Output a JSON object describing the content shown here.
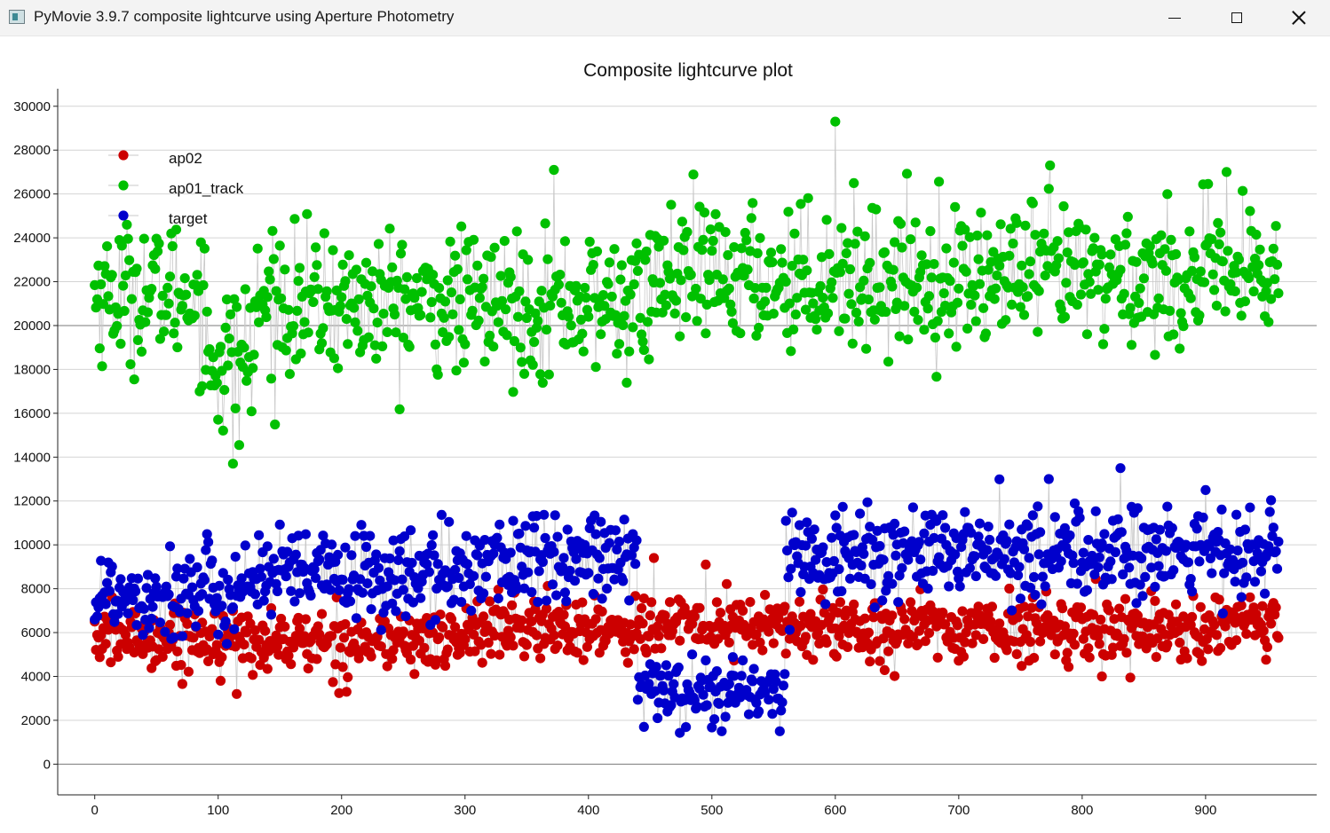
{
  "window": {
    "title": "PyMovie 3.9.7 composite lightcurve using Aperture Photometry",
    "minimize_icon": "minimize-icon",
    "maximize_icon": "maximize-icon",
    "close_icon": "close-icon"
  },
  "chart_data": {
    "type": "scatter",
    "title": "Composite lightcurve plot",
    "xlabel": "",
    "ylabel": "",
    "xlim": [
      -30,
      990
    ],
    "ylim": [
      -1400,
      30800
    ],
    "x_ticks": [
      0,
      100,
      200,
      300,
      400,
      500,
      600,
      700,
      800,
      900
    ],
    "y_ticks": [
      0,
      2000,
      4000,
      6000,
      8000,
      10000,
      12000,
      14000,
      16000,
      18000,
      20000,
      22000,
      24000,
      26000,
      28000,
      30000
    ],
    "x_tick_labels": [
      "0",
      "100",
      "200",
      "300",
      "400",
      "500",
      "600",
      "700",
      "800",
      "900"
    ],
    "y_tick_labels": [
      "0",
      "2000",
      "4000",
      "6000",
      "8000",
      "10000",
      "12000",
      "14000",
      "16000",
      "18000",
      "20000",
      "22000",
      "24000",
      "26000",
      "28000",
      "30000"
    ],
    "grid": true,
    "reference_lines": [
      0,
      20000
    ],
    "legend_position": "top-left",
    "n_points": 960,
    "series": [
      {
        "name": "ap02",
        "color": "#cc0000",
        "mean_by_segment": [
          {
            "x_start": 0,
            "x_end": 100,
            "mean": 5800
          },
          {
            "x_start": 100,
            "x_end": 300,
            "mean": 5600
          },
          {
            "x_start": 300,
            "x_end": 450,
            "mean": 6200
          },
          {
            "x_start": 450,
            "x_end": 560,
            "mean": 6300
          },
          {
            "x_start": 560,
            "x_end": 960,
            "mean": 6200
          }
        ],
        "highlights": [
          {
            "x": 115,
            "y": 3200
          },
          {
            "x": 453,
            "y": 9400
          },
          {
            "x": 495,
            "y": 9100
          },
          {
            "x": 816,
            "y": 4000
          }
        ]
      },
      {
        "name": "ap01_track",
        "color": "#00c000",
        "mean_by_segment": [
          {
            "x_start": 0,
            "x_end": 90,
            "mean": 21500
          },
          {
            "x_start": 90,
            "x_end": 130,
            "mean": 18500
          },
          {
            "x_start": 130,
            "x_end": 450,
            "mean": 21000
          },
          {
            "x_start": 450,
            "x_end": 960,
            "mean": 22200
          }
        ],
        "highlights": [
          {
            "x": 600,
            "y": 29300
          },
          {
            "x": 112,
            "y": 13700
          },
          {
            "x": 774,
            "y": 27300
          },
          {
            "x": 372,
            "y": 27100
          },
          {
            "x": 917,
            "y": 27000
          }
        ]
      },
      {
        "name": "target",
        "color": "#0000cc",
        "mean_by_segment": [
          {
            "x_start": 0,
            "x_end": 120,
            "mean": 7800
          },
          {
            "x_start": 120,
            "x_end": 300,
            "mean": 8600
          },
          {
            "x_start": 300,
            "x_end": 440,
            "mean": 9300
          },
          {
            "x_start": 440,
            "x_end": 560,
            "mean": 3400
          },
          {
            "x_start": 560,
            "x_end": 960,
            "mean": 9600
          }
        ],
        "highlights": [
          {
            "x": 831,
            "y": 13500
          },
          {
            "x": 773,
            "y": 13000
          },
          {
            "x": 900,
            "y": 12500
          },
          {
            "x": 508,
            "y": 1500
          },
          {
            "x": 555,
            "y": 1500
          },
          {
            "x": 445,
            "y": 1700
          }
        ]
      }
    ]
  }
}
